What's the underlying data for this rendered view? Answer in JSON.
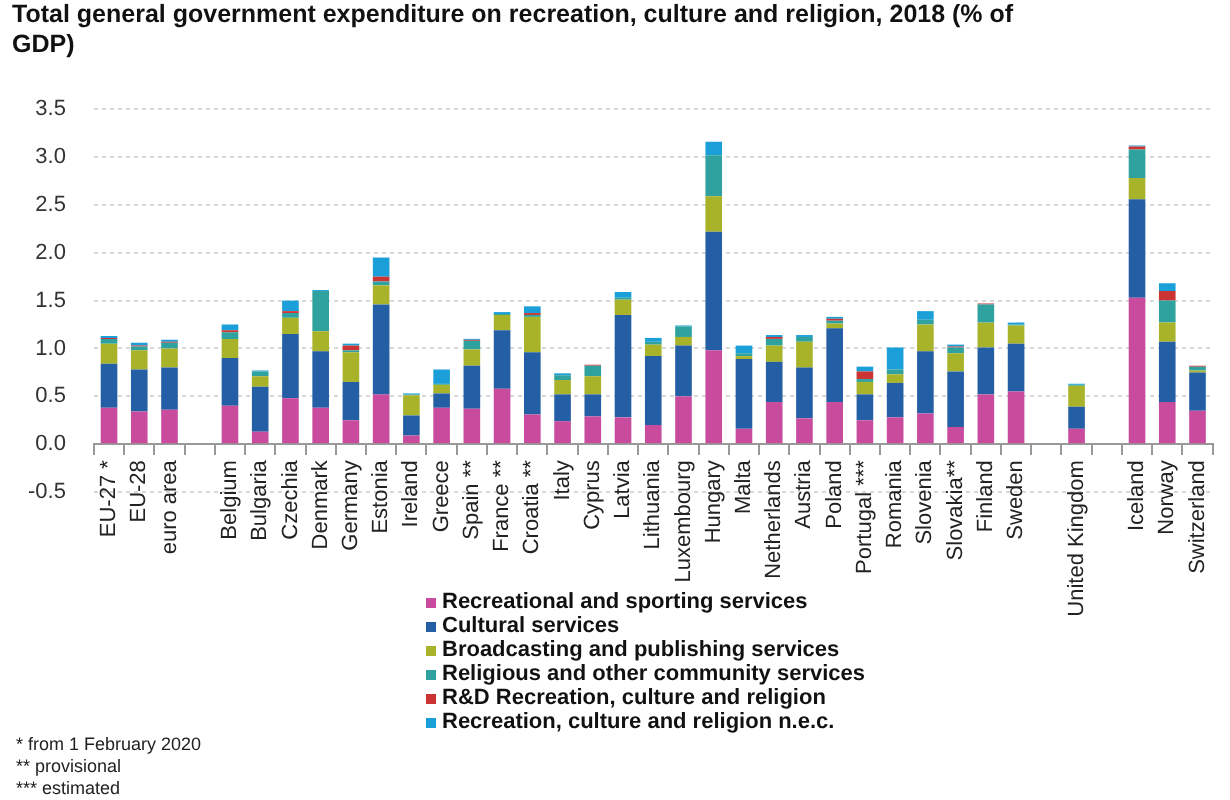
{
  "chart_data": {
    "type": "bar",
    "stacked": true,
    "title": "Total general government expenditure on recreation, culture and religion, 2018 (% of GDP)",
    "categories": [
      "EU-27 *",
      "EU-28",
      "euro area",
      null,
      "Belgium",
      "Bulgaria",
      "Czechia",
      "Denmark",
      "Germany",
      "Estonia",
      "Ireland",
      "Greece",
      "Spain **",
      "France **",
      "Croatia **",
      "Italy",
      "Cyprus",
      "Latvia",
      "Lithuania",
      "Luxembourg",
      "Hungary",
      "Malta",
      "Netherlands",
      "Austria",
      "Poland",
      "Portugal ***",
      "Romania",
      "Slovenia",
      "Slovakia**",
      "Finland",
      "Sweden",
      null,
      "United Kingdom",
      null,
      "Iceland",
      "Norway",
      "Switzerland"
    ],
    "series": [
      {
        "name": "Recreational and sporting services",
        "color": "#c84b9e",
        "values": [
          0.38,
          0.34,
          0.36,
          null,
          0.4,
          0.13,
          0.48,
          0.38,
          0.25,
          0.52,
          0.09,
          0.38,
          0.37,
          0.58,
          0.31,
          0.24,
          0.29,
          0.28,
          0.2,
          0.5,
          0.98,
          0.16,
          0.44,
          0.27,
          0.44,
          0.25,
          0.28,
          0.32,
          0.18,
          0.52,
          0.55,
          null,
          0.16,
          null,
          1.53,
          0.44,
          0.35
        ]
      },
      {
        "name": "Cultural services",
        "color": "#245fa5",
        "values": [
          0.46,
          0.44,
          0.44,
          null,
          0.5,
          0.47,
          0.67,
          0.59,
          0.4,
          0.94,
          0.21,
          0.15,
          0.45,
          0.61,
          0.65,
          0.28,
          0.23,
          1.07,
          0.72,
          0.53,
          1.24,
          0.73,
          0.42,
          0.53,
          0.77,
          0.27,
          0.36,
          0.65,
          0.58,
          0.49,
          0.5,
          null,
          0.23,
          null,
          1.03,
          0.63,
          0.4
        ]
      },
      {
        "name": "Broadcasting and publishing services",
        "color": "#a9b32a",
        "values": [
          0.21,
          0.2,
          0.2,
          null,
          0.2,
          0.11,
          0.17,
          0.21,
          0.31,
          0.2,
          0.21,
          0.09,
          0.17,
          0.16,
          0.37,
          0.15,
          0.19,
          0.16,
          0.12,
          0.09,
          0.37,
          0.03,
          0.17,
          0.27,
          0.05,
          0.13,
          0.09,
          0.28,
          0.19,
          0.26,
          0.19,
          null,
          0.22,
          null,
          0.22,
          0.2,
          0.02
        ]
      },
      {
        "name": "Religious and other community services",
        "color": "#2fa29f",
        "values": [
          0.05,
          0.04,
          0.06,
          null,
          0.07,
          0.05,
          0.05,
          0.42,
          0.02,
          0.04,
          0.01,
          0.01,
          0.09,
          0.01,
          0.02,
          0.05,
          0.11,
          0.02,
          0.03,
          0.11,
          0.43,
          0.03,
          0.07,
          0.05,
          0.03,
          0.03,
          0.05,
          0.05,
          0.06,
          0.19,
          0.01,
          null,
          0.01,
          null,
          0.3,
          0.23,
          0.04
        ]
      },
      {
        "name": "R&D Recreation, culture and religion",
        "color": "#cc3333",
        "values": [
          0.01,
          0.01,
          0.01,
          null,
          0.02,
          0,
          0.02,
          0,
          0.05,
          0.05,
          0,
          0,
          0.01,
          0,
          0.02,
          0,
          0.01,
          0,
          0,
          0,
          0,
          0,
          0.02,
          0,
          0.02,
          0.08,
          0,
          0,
          0.01,
          0.01,
          0,
          null,
          0,
          null,
          0.03,
          0.1,
          0.01
        ]
      },
      {
        "name": "Recreation, culture and religion n.e.c.",
        "color": "#1a9fd9",
        "values": [
          0.02,
          0.03,
          0.02,
          null,
          0.06,
          0.01,
          0.11,
          0.01,
          0.02,
          0.2,
          0.01,
          0.15,
          0.01,
          0.02,
          0.07,
          0.02,
          0,
          0.06,
          0.04,
          0.01,
          0.14,
          0.08,
          0.02,
          0.02,
          0.02,
          0.05,
          0.23,
          0.09,
          0.02,
          0,
          0.02,
          null,
          0.01,
          null,
          0.01,
          0.08,
          0
        ]
      }
    ],
    "ylim": [
      -0.5,
      3.5
    ],
    "yticks": [
      {
        "value": -0.5,
        "label": "-0.5"
      },
      {
        "value": 0,
        "label": "0.0"
      },
      {
        "value": 0.5,
        "label": "0.5"
      },
      {
        "value": 1,
        "label": "1.0"
      },
      {
        "value": 1.5,
        "label": "1.5"
      },
      {
        "value": 2,
        "label": "2.0"
      },
      {
        "value": 2.5,
        "label": "2.5"
      },
      {
        "value": 3,
        "label": "3.0"
      },
      {
        "value": 3.5,
        "label": "3.5"
      }
    ],
    "grid": "y",
    "legend": "bottom",
    "annotations": [
      "* from 1 February 2020",
      "** provisional",
      "*** estimated"
    ]
  }
}
